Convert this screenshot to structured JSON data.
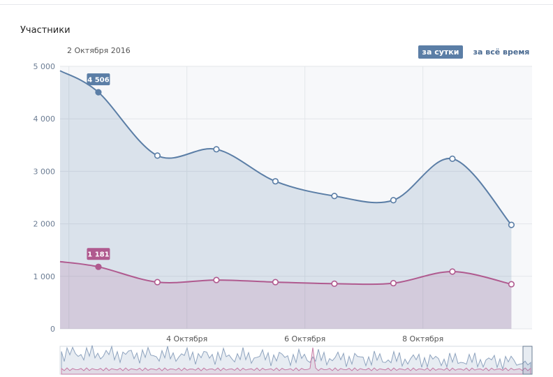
{
  "header": {
    "title": "Участники",
    "date": "2 Октября 2016",
    "btn_day": "за сутки",
    "btn_all": "за всё время"
  },
  "colors": {
    "series1": "#5b7ea6",
    "series2": "#b05a8f",
    "active_button": "#5b7ea6"
  },
  "chart_data": {
    "type": "area",
    "title": "",
    "xlabel": "",
    "ylabel": "",
    "ylim": [
      0,
      5000
    ],
    "yticks": [
      "5 000",
      "4 000",
      "3 000",
      "2 000",
      "1 000",
      "0"
    ],
    "x_tick_labels": [
      {
        "label": "4 Октября",
        "x": 4
      },
      {
        "label": "6 Октября",
        "x": 6
      },
      {
        "label": "8 Октября",
        "x": 8
      }
    ],
    "x": [
      2.5,
      3.5,
      4.5,
      5.5,
      6.5,
      7.5,
      8.5,
      9.5
    ],
    "series": [
      {
        "values": [
          4506,
          3300,
          3420,
          2810,
          2530,
          2450,
          3240,
          1980
        ],
        "highlight_index": 0,
        "highlight_label": "4 506"
      },
      {
        "values": [
          1181,
          890,
          930,
          890,
          860,
          870,
          1090,
          850
        ],
        "highlight_index": 0,
        "highlight_label": "1 181"
      }
    ],
    "grid": true,
    "navigator": true
  }
}
